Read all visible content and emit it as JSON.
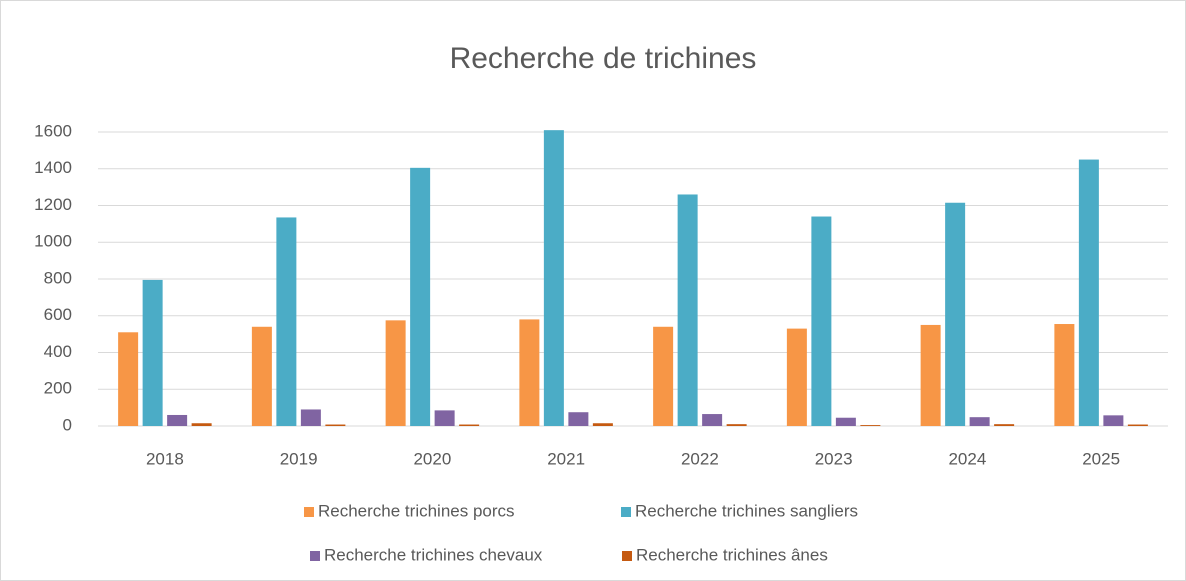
{
  "chart_data": {
    "type": "bar",
    "title": "Recherche de trichines",
    "categories": [
      "2018",
      "2019",
      "2020",
      "2021",
      "2022",
      "2023",
      "2024",
      "2025"
    ],
    "series": [
      {
        "name": "Recherche trichines porcs",
        "color": "#f79646",
        "values": [
          510,
          540,
          575,
          580,
          540,
          530,
          550,
          555
        ]
      },
      {
        "name": "Recherche trichines sangliers",
        "color": "#4bacc6",
        "values": [
          795,
          1135,
          1405,
          1610,
          1260,
          1140,
          1215,
          1450
        ]
      },
      {
        "name": "Recherche trichines chevaux",
        "color": "#8064a2",
        "values": [
          60,
          90,
          85,
          75,
          65,
          45,
          48,
          58
        ]
      },
      {
        "name": "Recherche trichines ânes",
        "color": "#c55a11",
        "values": [
          15,
          8,
          8,
          15,
          10,
          5,
          10,
          8
        ]
      }
    ],
    "ylim": [
      0,
      1600
    ],
    "yticks": [
      0,
      200,
      400,
      600,
      800,
      1000,
      1200,
      1400,
      1600
    ],
    "grid": true,
    "legend": "bottom"
  }
}
